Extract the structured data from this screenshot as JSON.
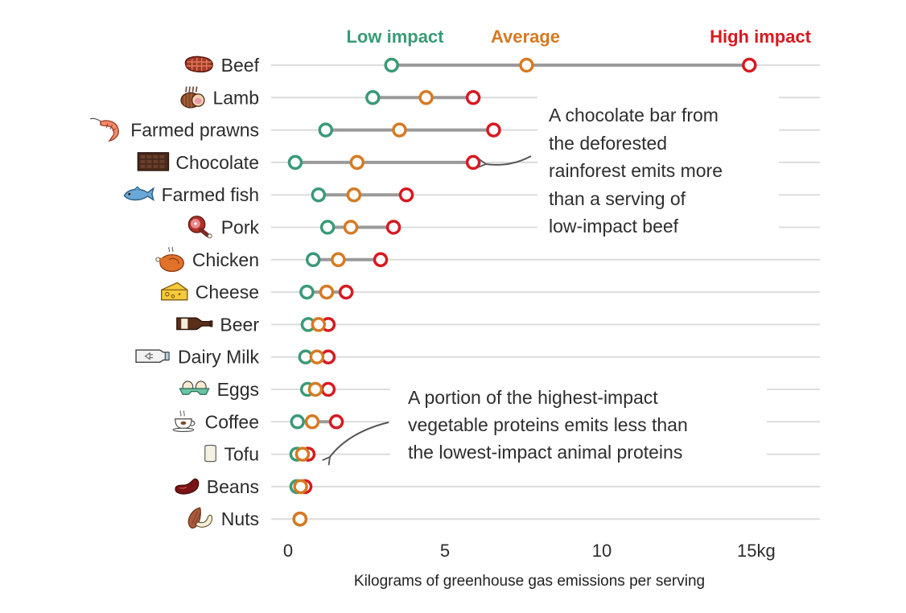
{
  "chart_data": {
    "type": "dumbbell",
    "title": "",
    "xlabel": "Kilograms of greenhouse gas emissions per serving",
    "ylabel": "",
    "xlim": [
      0,
      16.5
    ],
    "xticks": [
      {
        "value": 0,
        "label": "0"
      },
      {
        "value": 5,
        "label": "5"
      },
      {
        "value": 10,
        "label": "10"
      },
      {
        "value": 15,
        "label": "15kg"
      }
    ],
    "grid": "horizontal",
    "legend_position": "top",
    "series": [
      {
        "key": "low",
        "name": "Low impact",
        "color": "#3a9a76"
      },
      {
        "key": "avg",
        "name": "Average",
        "color": "#d67a22"
      },
      {
        "key": "high",
        "name": "High impact",
        "color": "#d71920"
      }
    ],
    "categories": [
      {
        "name": "Beef",
        "icon": "steak-icon",
        "low": 3.3,
        "avg": 7.6,
        "high": 14.7
      },
      {
        "name": "Lamb",
        "icon": "lamb-rack-icon",
        "low": 2.7,
        "avg": 4.4,
        "high": 5.9
      },
      {
        "name": "Farmed prawns",
        "icon": "prawn-icon",
        "low": 1.2,
        "avg": 3.55,
        "high": 6.55
      },
      {
        "name": "Chocolate",
        "icon": "chocolate-bar-icon",
        "low": 0.23,
        "avg": 2.2,
        "high": 5.9
      },
      {
        "name": "Farmed fish",
        "icon": "fish-icon",
        "low": 0.97,
        "avg": 2.1,
        "high": 3.77
      },
      {
        "name": "Pork",
        "icon": "ham-icon",
        "low": 1.26,
        "avg": 2.0,
        "high": 3.36
      },
      {
        "name": "Chicken",
        "icon": "roast-chicken-icon",
        "low": 0.8,
        "avg": 1.6,
        "high": 2.95
      },
      {
        "name": "Cheese",
        "icon": "cheese-icon",
        "low": 0.6,
        "avg": 1.23,
        "high": 1.85
      },
      {
        "name": "Beer",
        "icon": "beer-bottle-icon",
        "low": 0.64,
        "avg": 0.97,
        "high": 1.28
      },
      {
        "name": "Dairy Milk",
        "icon": "milk-bottle-icon",
        "low": 0.56,
        "avg": 0.92,
        "high": 1.28
      },
      {
        "name": "Eggs",
        "icon": "eggs-icon",
        "low": 0.62,
        "avg": 0.87,
        "high": 1.28
      },
      {
        "name": "Coffee",
        "icon": "coffee-cup-icon",
        "low": 0.3,
        "avg": 0.77,
        "high": 1.54
      },
      {
        "name": "Tofu",
        "icon": "tofu-icon",
        "low": 0.28,
        "avg": 0.46,
        "high": 0.64
      },
      {
        "name": "Beans",
        "icon": "bean-icon",
        "low": 0.28,
        "avg": 0.4,
        "high": 0.54
      },
      {
        "name": "Nuts",
        "icon": "nuts-icon",
        "low": 0.38,
        "avg": 0.38,
        "high": 0.38
      }
    ],
    "annotations": [
      {
        "name": "chocolate-annotation",
        "lines": [
          "A chocolate bar from",
          "the deforested",
          "rainforest emits more",
          "than a serving of",
          "low-impact beef"
        ],
        "points_to": "Chocolate"
      },
      {
        "name": "vegetable-annotation",
        "lines": [
          "A portion of the highest-impact",
          "vegetable proteins emits less than",
          "the lowest-impact animal proteins"
        ],
        "points_to": "Tofu"
      }
    ]
  }
}
